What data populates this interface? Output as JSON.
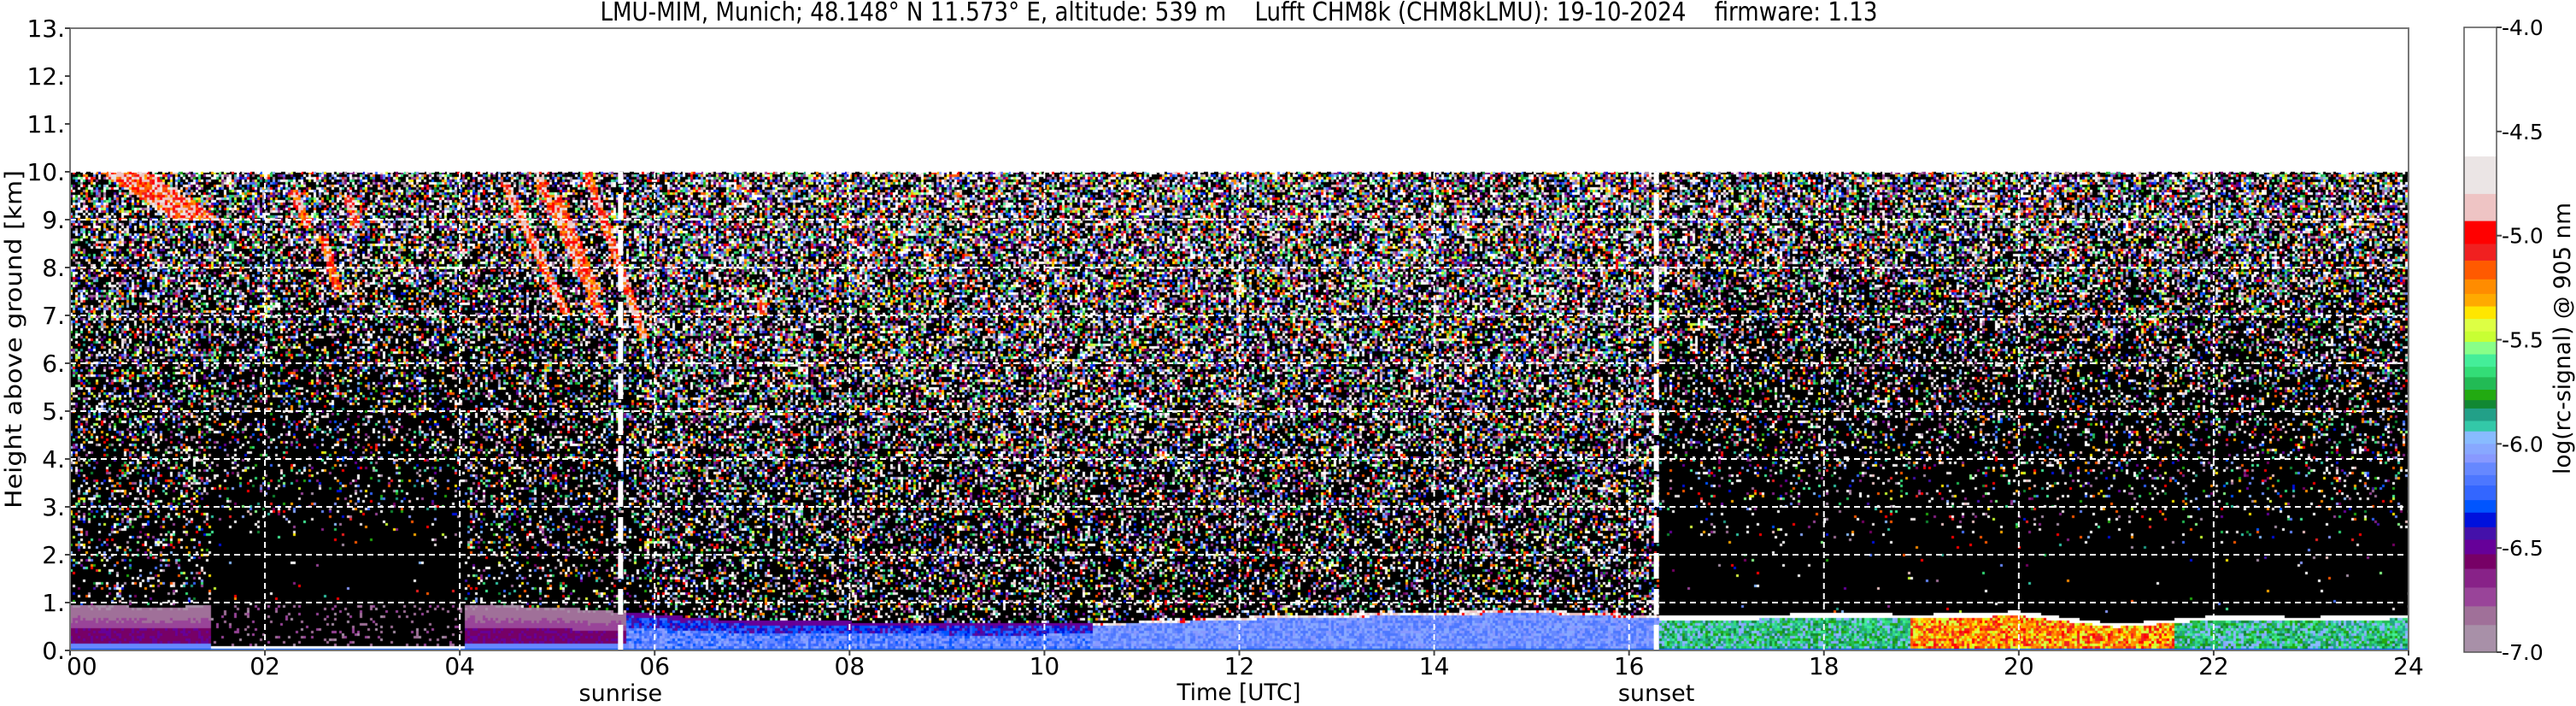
{
  "chart_data": {
    "type": "heatmap",
    "title": "LMU-MIM, Munich; 48.148° N 11.573° E, altitude: 539 m    Lufft CHM8k (CHM8kLMU): 19-10-2024    firmware: 1.13",
    "xlabel": "Time [UTC]",
    "ylabel": "Height above ground [km]",
    "xlim": [
      0,
      24
    ],
    "ylim": [
      0,
      13
    ],
    "xticks": [
      0,
      2,
      4,
      6,
      8,
      10,
      12,
      14,
      16,
      18,
      20,
      22,
      24
    ],
    "xtick_labels": [
      "00",
      "02",
      "04",
      "06",
      "08",
      "10",
      "12",
      "14",
      "16",
      "18",
      "20",
      "22",
      "24"
    ],
    "yticks": [
      0,
      1,
      2,
      3,
      4,
      5,
      6,
      7,
      8,
      9,
      10,
      11,
      12,
      13
    ],
    "ytick_labels": [
      "0.",
      "1.",
      "2.",
      "3.",
      "4.",
      "5.",
      "6.",
      "7.",
      "8.",
      "9.",
      "10.",
      "11.",
      "12.",
      "13."
    ],
    "grid": true,
    "data_top_km": 10,
    "markers": [
      {
        "label": "sunrise",
        "x": 5.65
      },
      {
        "label": "sunset",
        "x": 16.28
      }
    ],
    "aerosol_layer_top_km": {
      "time": [
        0,
        1,
        1.45,
        4.05,
        5,
        6,
        7,
        8,
        9,
        10,
        11,
        12,
        13,
        14,
        15,
        16,
        17,
        18,
        19,
        20,
        21,
        22,
        23,
        24
      ],
      "height": [
        0.95,
        0.9,
        0.95,
        0.95,
        0.9,
        0.75,
        0.6,
        0.6,
        0.55,
        0.55,
        0.6,
        0.7,
        0.75,
        0.8,
        0.85,
        0.75,
        0.72,
        0.78,
        0.75,
        0.82,
        0.55,
        0.72,
        0.7,
        0.75
      ]
    },
    "cirrus_features": [
      {
        "t": [
          0.55,
          1.3
        ],
        "h": [
          10.0,
          9.0
        ]
      },
      {
        "t": [
          2.3,
          2.45
        ],
        "h": [
          9.6,
          8.8
        ]
      },
      {
        "t": [
          2.6,
          2.75
        ],
        "h": [
          8.6,
          7.5
        ]
      },
      {
        "t": [
          2.85,
          2.95
        ],
        "h": [
          9.5,
          8.8
        ]
      },
      {
        "t": [
          4.45,
          5.1
        ],
        "h": [
          9.8,
          7.0
        ]
      },
      {
        "t": [
          4.8,
          5.5
        ],
        "h": [
          9.9,
          6.8
        ]
      },
      {
        "t": [
          5.3,
          5.9
        ],
        "h": [
          10.0,
          6.5
        ]
      },
      {
        "t": [
          5.0,
          5.4
        ],
        "h": [
          9.5,
          7.5
        ]
      },
      {
        "t": [
          7.08,
          7.12
        ],
        "h": [
          7.4,
          7.0
        ]
      }
    ],
    "colorbar": {
      "label": "log(rc-signal) @ 905 nm",
      "range": [
        -7.0,
        -4.0
      ],
      "ticks": [
        -4.0,
        -4.5,
        -5.0,
        -5.5,
        -6.0,
        -6.5,
        -7.0
      ],
      "tick_labels": [
        "-4.0",
        "-4.5",
        "-5.0",
        "-5.5",
        "-6.0",
        "-6.5",
        "-7.0"
      ],
      "bounds": [
        -4.0,
        -4.62,
        -4.8,
        -4.93,
        -5.04,
        -5.12,
        -5.21,
        -5.28,
        -5.34,
        -5.4,
        -5.46,
        -5.51,
        -5.57,
        -5.63,
        -5.68,
        -5.74,
        -5.79,
        -5.83,
        -5.89,
        -5.94,
        -6.0,
        -6.05,
        -6.09,
        -6.15,
        -6.2,
        -6.27,
        -6.33,
        -6.4,
        -6.46,
        -6.53,
        -6.6,
        -6.69,
        -6.78,
        -6.87,
        -7.0
      ],
      "colors": [
        "#ffffff",
        "#ebe5e5",
        "#eec4c4",
        "#ff0000",
        "#f02020",
        "#ff5a00",
        "#ff8c00",
        "#ffaa00",
        "#ffe600",
        "#ddff44",
        "#c8ff33",
        "#88ff88",
        "#44ee99",
        "#33dd77",
        "#22bb55",
        "#22aa11",
        "#118833",
        "#22a088",
        "#33c8a8",
        "#88bbff",
        "#88a8ff",
        "#8899ff",
        "#6688ff",
        "#4d77ff",
        "#3366ff",
        "#0055ff",
        "#0011dd",
        "#4411aa",
        "#660099",
        "#770066",
        "#882288",
        "#994499",
        "#a07099",
        "#a890a8"
      ]
    }
  }
}
